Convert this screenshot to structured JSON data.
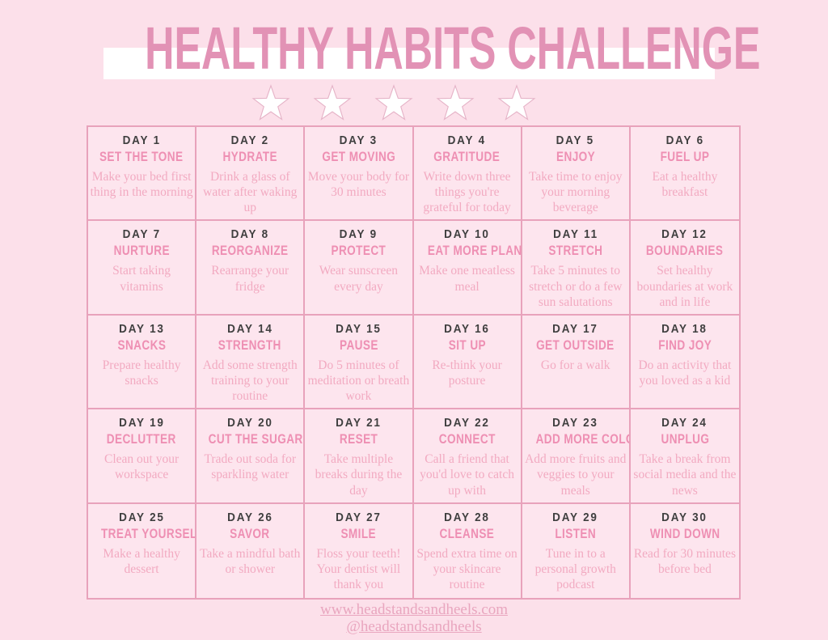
{
  "header": {
    "title": "HEALTHY HABITS CHALLENGE",
    "star_count": 5
  },
  "days": [
    {
      "label": "DAY 1",
      "title": "SET THE TONE",
      "description": "Make your bed first thing in the morning"
    },
    {
      "label": "DAY 2",
      "title": "HYDRATE",
      "description": "Drink a glass of water after waking up"
    },
    {
      "label": "DAY 3",
      "title": "GET MOVING",
      "description": "Move your body for 30 minutes"
    },
    {
      "label": "DAY 4",
      "title": "GRATITUDE",
      "description": "Write down three things you're grateful for today"
    },
    {
      "label": "DAY 5",
      "title": "ENJOY",
      "description": "Take time to enjoy your morning beverage"
    },
    {
      "label": "DAY 6",
      "title": "FUEL UP",
      "description": "Eat a healthy breakfast"
    },
    {
      "label": "DAY 7",
      "title": "NURTURE",
      "description": "Start taking vitamins"
    },
    {
      "label": "DAY 8",
      "title": "REORGANIZE",
      "description": "Rearrange your fridge"
    },
    {
      "label": "DAY 9",
      "title": "PROTECT",
      "description": "Wear sunscreen every day"
    },
    {
      "label": "DAY 10",
      "title": "EAT MORE PLANTS",
      "description": "Make one meatless meal"
    },
    {
      "label": "DAY 11",
      "title": "STRETCH",
      "description": "Take 5 minutes to stretch or do a few sun salutations"
    },
    {
      "label": "DAY 12",
      "title": "BOUNDARIES",
      "description": "Set healthy boundaries at work and in life"
    },
    {
      "label": "DAY 13",
      "title": "SNACKS",
      "description": "Prepare healthy snacks"
    },
    {
      "label": "DAY 14",
      "title": "STRENGTH",
      "description": "Add some strength training to your routine"
    },
    {
      "label": "DAY 15",
      "title": "PAUSE",
      "description": "Do 5 minutes of meditation or breath work"
    },
    {
      "label": "DAY 16",
      "title": "SIT UP",
      "description": "Re-think your posture"
    },
    {
      "label": "DAY 17",
      "title": "GET OUTSIDE",
      "description": "Go for a walk"
    },
    {
      "label": "DAY 18",
      "title": "FIND JOY",
      "description": "Do an activity that you loved as a kid"
    },
    {
      "label": "DAY 19",
      "title": "DECLUTTER",
      "description": "Clean out your workspace"
    },
    {
      "label": "DAY 20",
      "title": "CUT THE SUGAR",
      "description": "Trade out soda for sparkling water"
    },
    {
      "label": "DAY 21",
      "title": "RESET",
      "description": "Take multiple breaks during the day"
    },
    {
      "label": "DAY 22",
      "title": "CONNECT",
      "description": "Call a friend that you'd love to catch up with"
    },
    {
      "label": "DAY 23",
      "title": "ADD MORE COLOR",
      "description": "Add more fruits and veggies to your meals"
    },
    {
      "label": "DAY 24",
      "title": "UNPLUG",
      "description": "Take a break from social media and the news"
    },
    {
      "label": "DAY 25",
      "title": "TREAT YOURSELF",
      "description": "Make a healthy dessert"
    },
    {
      "label": "DAY 26",
      "title": "SAVOR",
      "description": "Take a mindful bath or shower"
    },
    {
      "label": "DAY 27",
      "title": "SMILE",
      "description": "Floss your teeth! Your dentist will thank you"
    },
    {
      "label": "DAY 28",
      "title": "CLEANSE",
      "description": "Spend extra time on your skincare routine"
    },
    {
      "label": "DAY 29",
      "title": "LISTEN",
      "description": "Tune in to a personal growth podcast"
    },
    {
      "label": "DAY 30",
      "title": "WIND DOWN",
      "description": "Read for 30 minutes before bed"
    }
  ],
  "footer": {
    "website": "www.headstandsandheels.com",
    "handle": "@headstandsandheels"
  },
  "colors": {
    "background": "#fce0ea",
    "cell_background": "#fde5ee",
    "title_pink": "#e292b5",
    "habit_title_pink": "#ee8fb3",
    "description_pink": "#f2aac1",
    "border_pink": "#e8a2bb",
    "day_number_dark": "#3f3f3f",
    "footer_pink": "#e9a6bf",
    "band_white": "#ffffff"
  }
}
